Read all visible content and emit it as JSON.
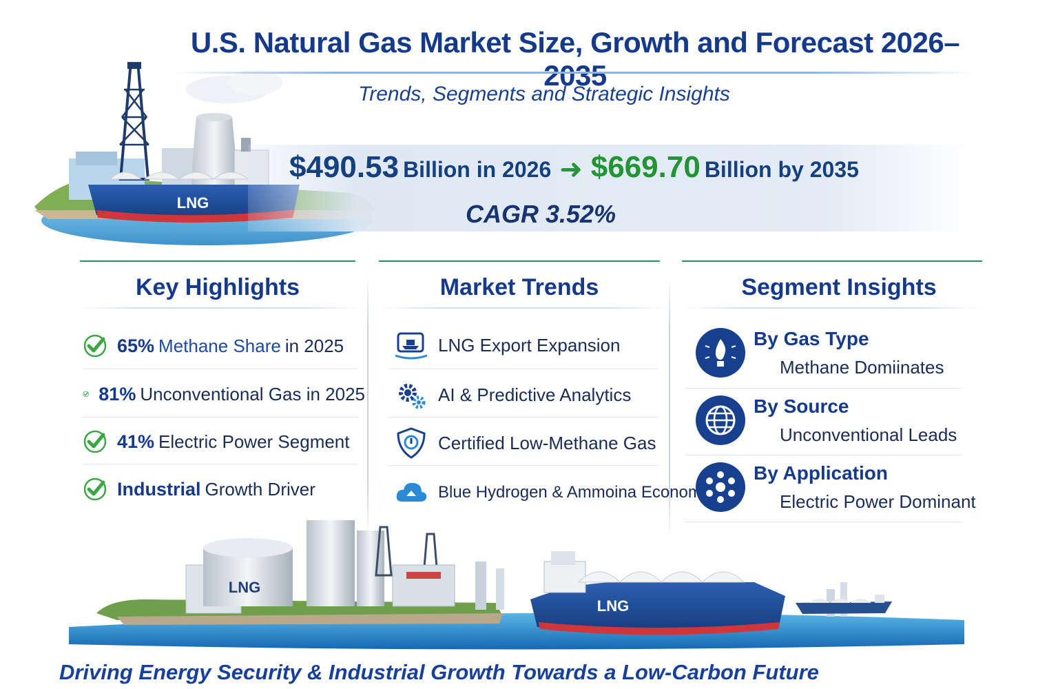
{
  "header": {
    "title": "U.S. Natural Gas Market Size, Growth and Forecast 2026–2035",
    "subtitle": "Trends, Segments and Strategic Insights"
  },
  "market": {
    "value_2026": "$490.53",
    "value_2026_text": "Billion in 2026",
    "value_2035": "$669.70",
    "value_2035_text": "Billion by 2035",
    "cagr": "CAGR 3.52%"
  },
  "ship_label": "LNG",
  "plant_label": "LNG",
  "key_highlights": {
    "heading": "Key Highlights",
    "items": [
      {
        "bold": "65%",
        "blue": "Methane Share",
        "dark": "in 2025"
      },
      {
        "bold": "81%",
        "blue": "",
        "dark": "Unconventional Gas in 2025"
      },
      {
        "bold": "41%",
        "blue": "",
        "dark": "Electric Power Segment"
      },
      {
        "bold": "Industrial",
        "blue": "",
        "dark": "Growth Driver"
      }
    ]
  },
  "market_trends": {
    "heading": "Market Trends",
    "items": [
      {
        "label": "LNG Export Expansion",
        "icon": "ship-monitor-icon"
      },
      {
        "label": "AI & Predictive Analytics",
        "icon": "gears-icon"
      },
      {
        "label": "Certified Low-Methane Gas",
        "icon": "shield-icon"
      },
      {
        "label": "Blue Hydrogen & Ammoina Economy",
        "icon": "cloud-recycle-icon"
      }
    ]
  },
  "segment_insights": {
    "heading": "Segment Insights",
    "items": [
      {
        "title": "By Gas Type",
        "sub": "Methane Domiinates",
        "icon": "flame-bulb-icon"
      },
      {
        "title": "By Source",
        "sub": "Unconventional Leads",
        "icon": "globe-icon"
      },
      {
        "title": "By Application",
        "sub": "Electric Power Dominant",
        "icon": "people-network-icon"
      }
    ]
  },
  "footer": {
    "tagline": "Driving Energy Security & Industrial Growth Towards a Low-Carbon Future"
  },
  "colors": {
    "title_blue": "#163a8a",
    "green_value": "#239434",
    "check_green": "#3aa645",
    "icon_navy": "#17408f"
  }
}
